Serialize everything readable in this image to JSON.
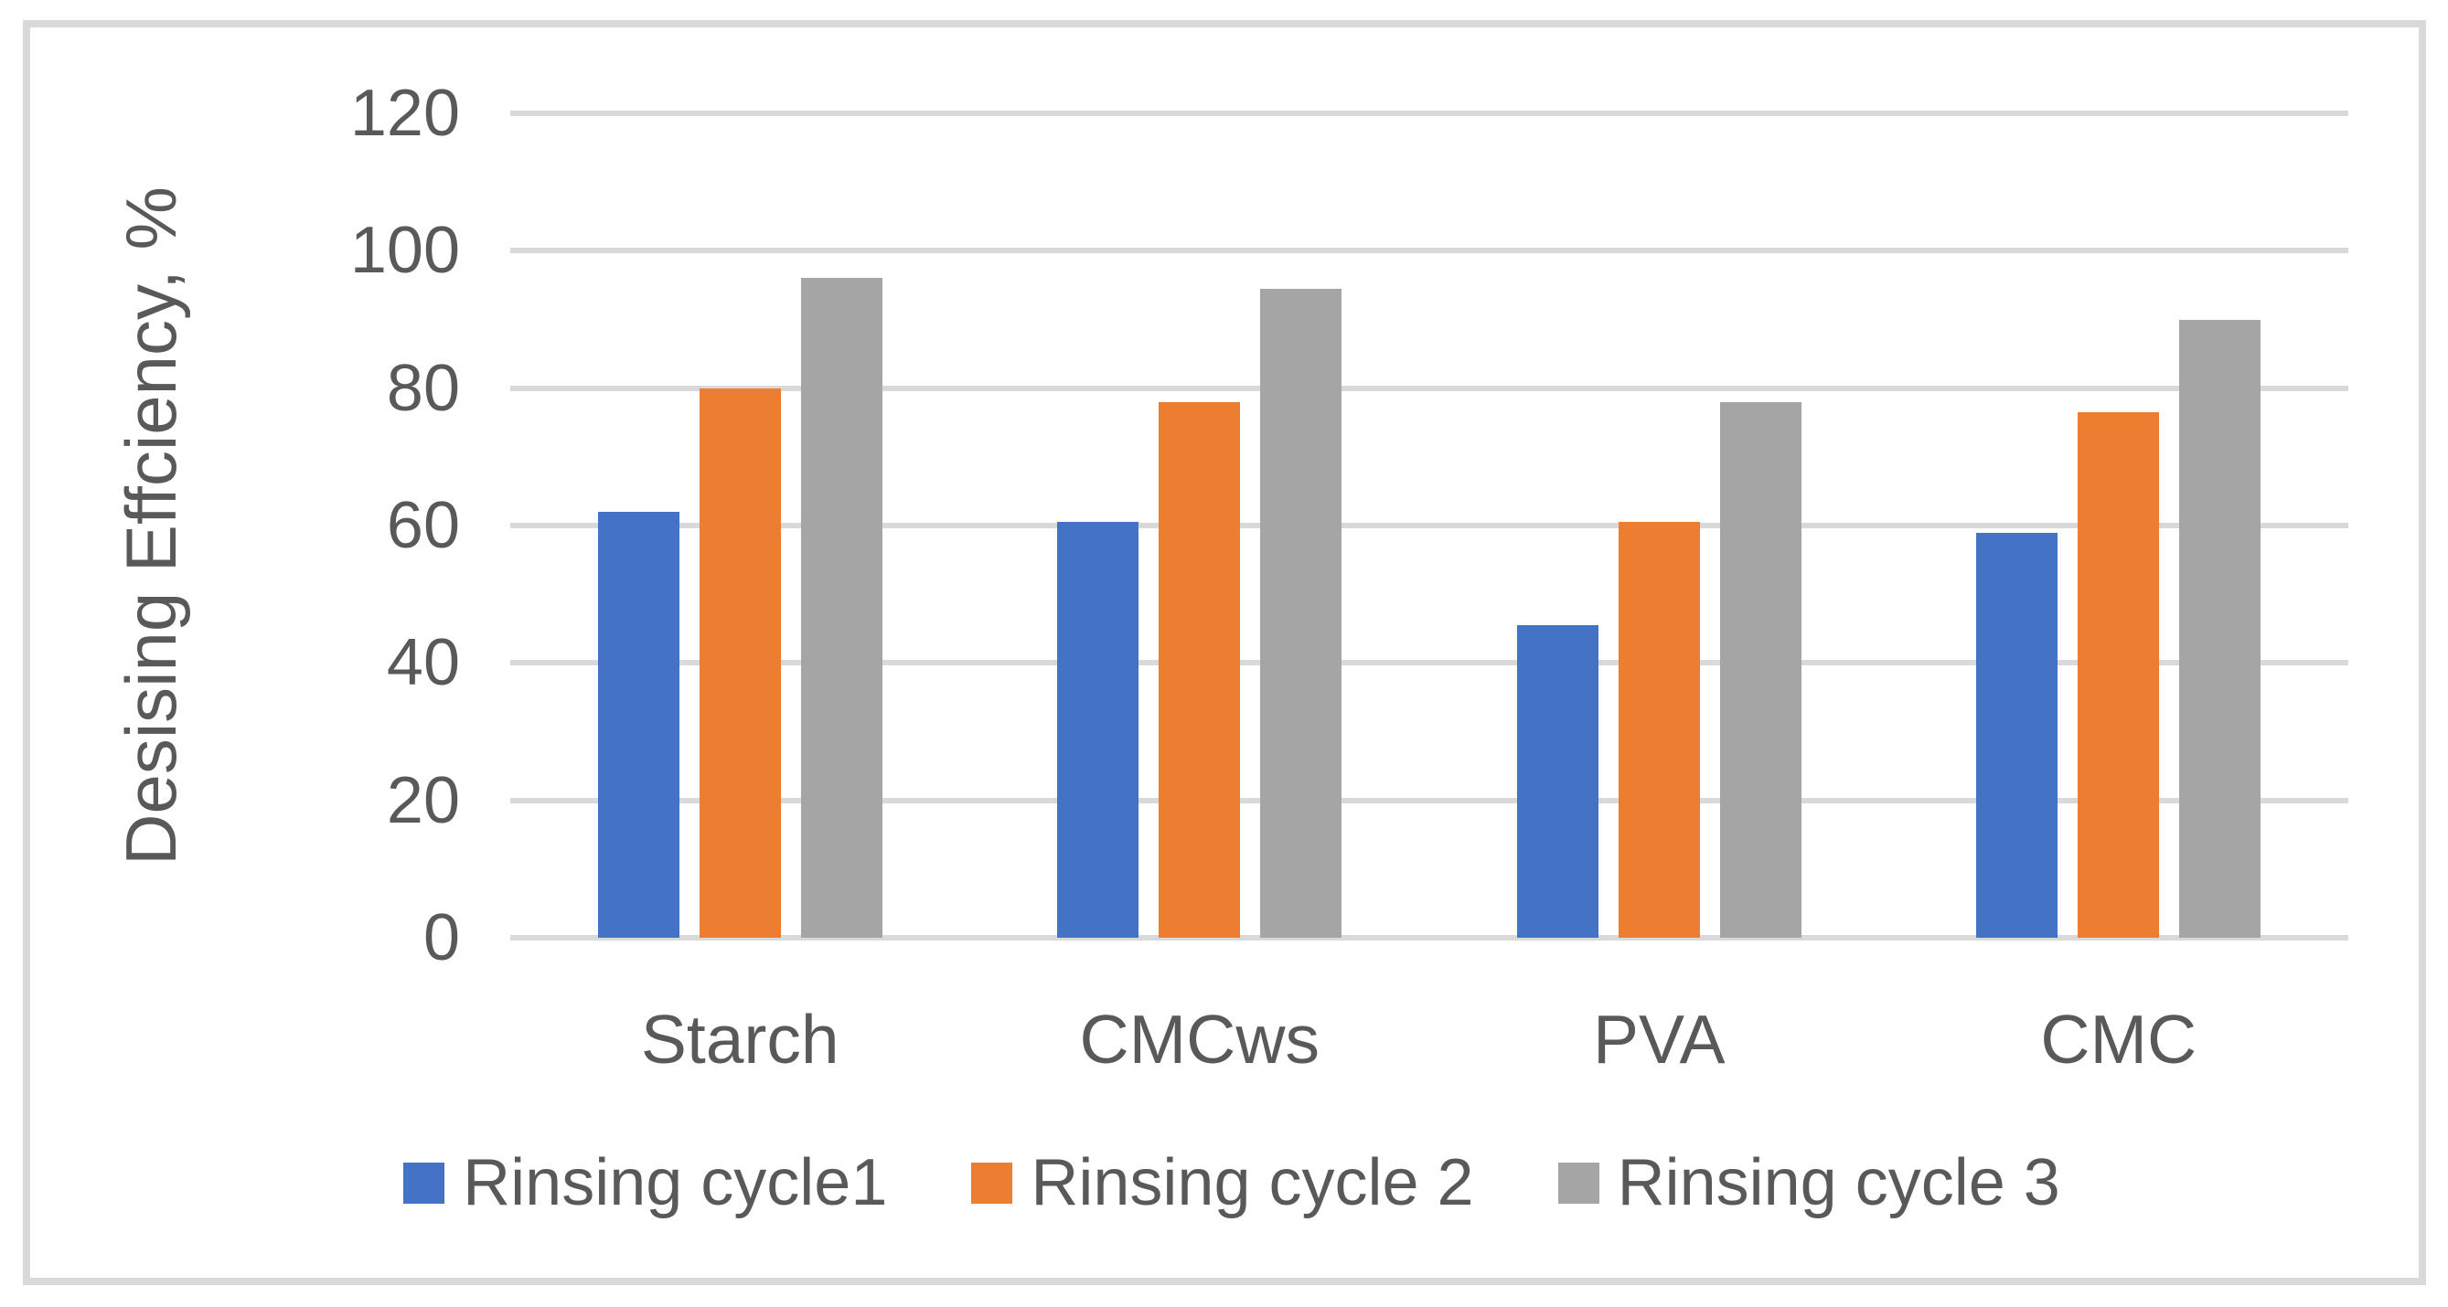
{
  "chart_data": {
    "type": "bar",
    "title": "",
    "ylabel": "Desising Effciency, %",
    "xlabel": "",
    "categories": [
      "Starch",
      "CMCws",
      "PVA",
      "CMC"
    ],
    "series": [
      {
        "name": "Rinsing cycle1",
        "color": "#4472c4",
        "values": [
          62,
          60.5,
          45.5,
          59
        ]
      },
      {
        "name": "Rinsing cycle 2",
        "color": "#ed7d31",
        "values": [
          80,
          78,
          60.5,
          76.5
        ]
      },
      {
        "name": "Rinsing cycle 3",
        "color": "#a5a5a5",
        "values": [
          96,
          94.5,
          78,
          90
        ]
      }
    ],
    "ylim": [
      0,
      120
    ],
    "yticks": [
      0,
      20,
      40,
      60,
      80,
      100,
      120
    ],
    "grid": true,
    "legend_position": "bottom"
  },
  "colors": {
    "gridline": "#d9d9d9",
    "frame_border": "#d9d9d9",
    "text": "#595959",
    "background": "#ffffff"
  }
}
